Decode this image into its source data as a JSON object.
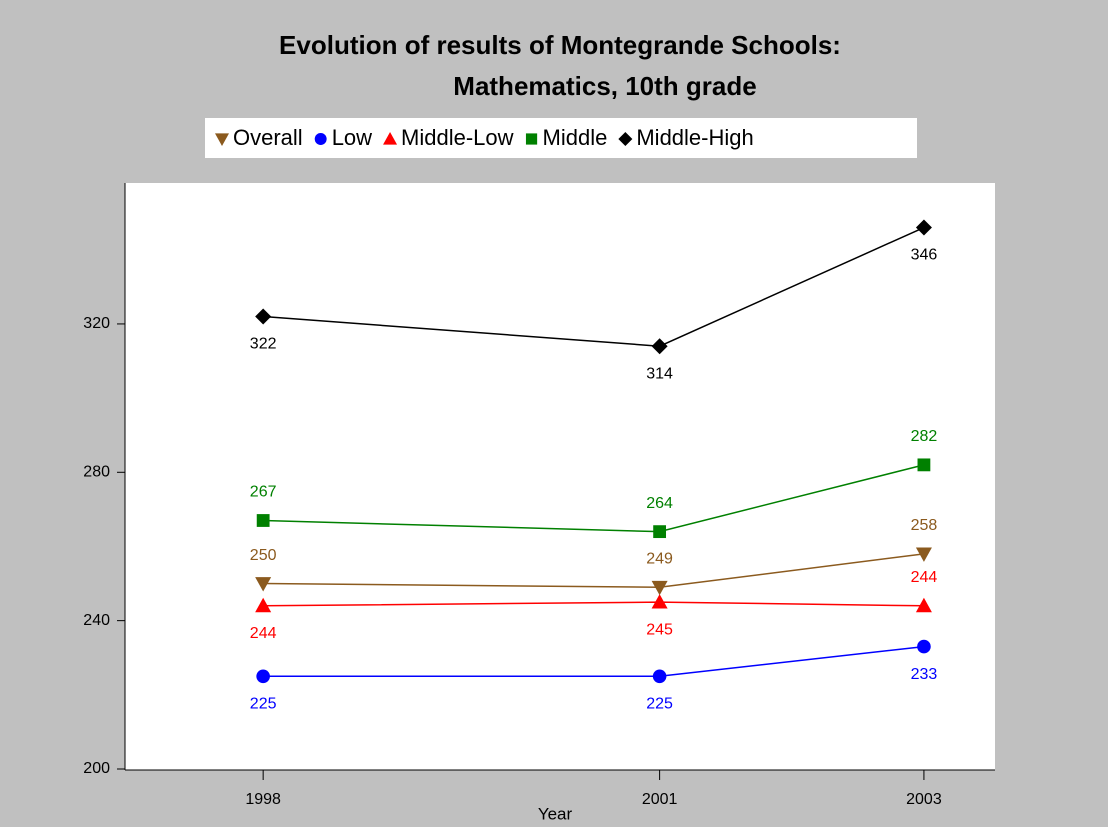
{
  "chart_data": {
    "type": "line",
    "title": [
      "Evolution of results of Montegrande Schools:",
      "Mathematics, 10th grade"
    ],
    "x_label": "Year",
    "x": [
      1998,
      2001,
      2003
    ],
    "xlim": [
      1997,
      2003.5
    ],
    "xticks": [
      1998,
      2001,
      2003
    ],
    "ylim": [
      200,
      358
    ],
    "yticks": [
      200,
      240,
      280,
      320
    ],
    "legend": "top",
    "series": [
      {
        "name": "Overall",
        "color": "#8b5a1e",
        "marker": "triangle-down",
        "values": [
          250,
          249,
          258
        ]
      },
      {
        "name": "Low",
        "color": "#0000ff",
        "marker": "circle",
        "values": [
          225,
          225,
          233
        ]
      },
      {
        "name": "Middle-Low",
        "color": "#ff0000",
        "marker": "triangle",
        "values": [
          244,
          245,
          244
        ]
      },
      {
        "name": "Middle",
        "color": "#008000",
        "marker": "square",
        "values": [
          267,
          264,
          282
        ]
      },
      {
        "name": "Middle-High",
        "color": "#000000",
        "marker": "diamond",
        "values": [
          322,
          314,
          346
        ]
      }
    ]
  }
}
